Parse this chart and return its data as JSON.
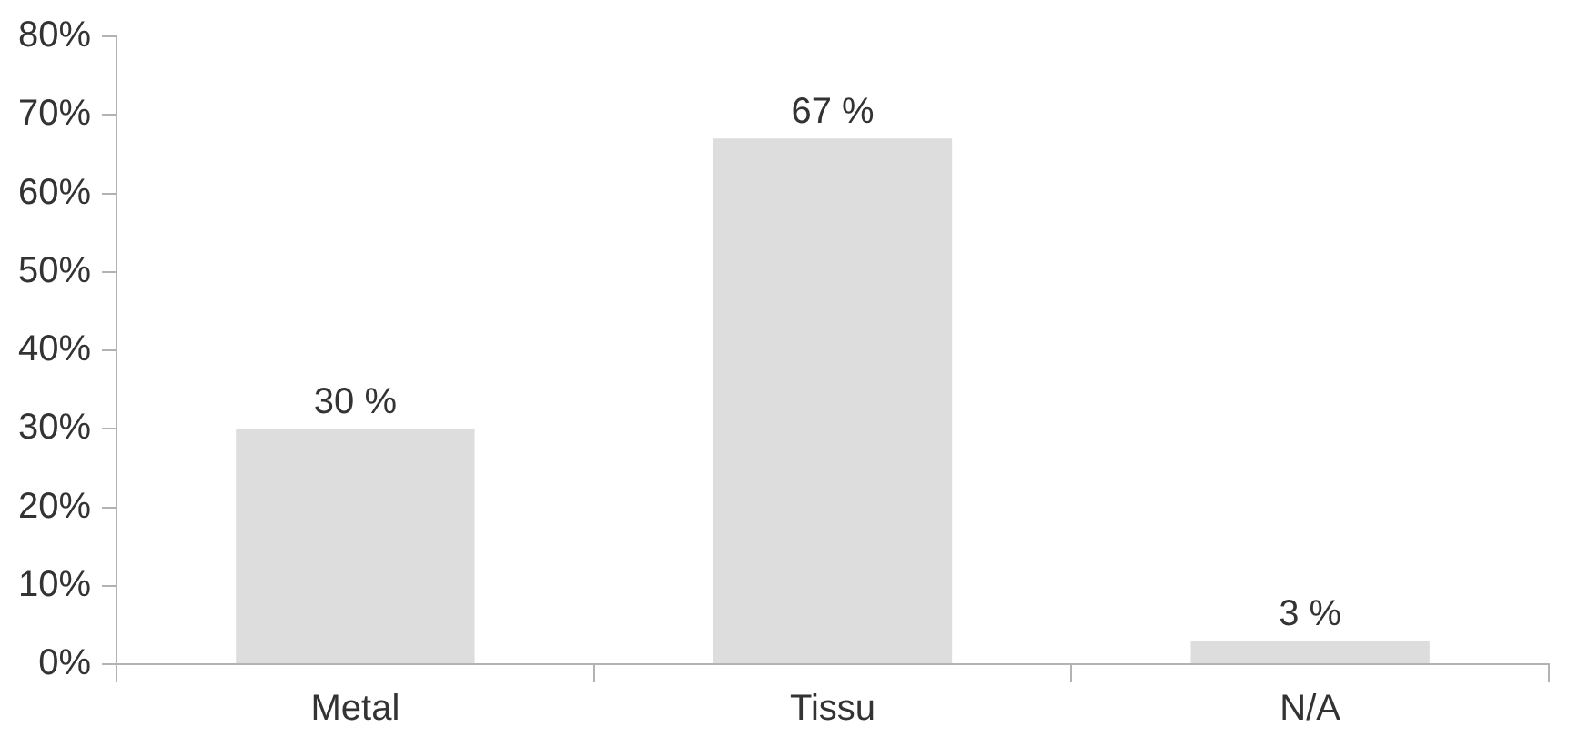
{
  "chart_data": {
    "type": "bar",
    "categories": [
      "Metal",
      "Tissu",
      "N/A"
    ],
    "values": [
      30,
      67,
      3
    ],
    "value_labels": [
      "30 %",
      "67 %",
      "3 %"
    ],
    "color": "#dddddd",
    "ylim": [
      0,
      80
    ],
    "yticks": [
      {
        "value": 0,
        "label": "0%"
      },
      {
        "value": 10,
        "label": "10%"
      },
      {
        "value": 20,
        "label": "20%"
      },
      {
        "value": 30,
        "label": "30%"
      },
      {
        "value": 40,
        "label": "40%"
      },
      {
        "value": 50,
        "label": "50%"
      },
      {
        "value": 60,
        "label": "60%"
      },
      {
        "value": 70,
        "label": "70%"
      },
      {
        "value": 80,
        "label": "80%"
      }
    ],
    "grid": false,
    "legend": false
  }
}
